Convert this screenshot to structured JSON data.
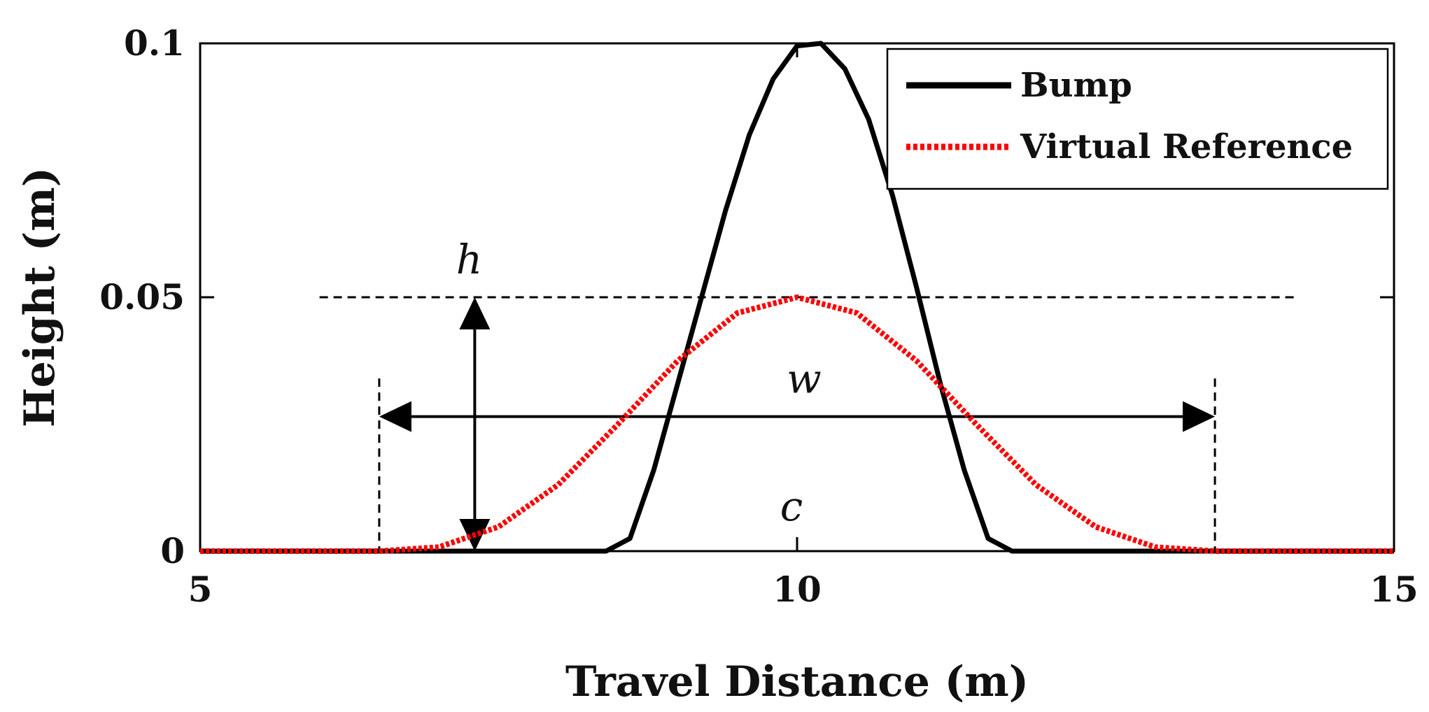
{
  "chart_data": {
    "type": "line",
    "xlabel": "Travel Distance (m)",
    "ylabel": "Height (m)",
    "xlim": [
      5,
      15
    ],
    "ylim": [
      0,
      0.1
    ],
    "x_ticks": [
      5,
      10,
      15
    ],
    "x_tick_labels": [
      "5",
      "10",
      "15"
    ],
    "y_ticks": [
      0,
      0.05,
      0.1
    ],
    "y_tick_labels": [
      "0",
      "0.05",
      "0.1"
    ],
    "grid": false,
    "legend_position": "top-right",
    "series": [
      {
        "name": "Bump",
        "color": "#000000",
        "style": "solid",
        "x": [
          5,
          6,
          7,
          8,
          8.4,
          8.6,
          8.8,
          9.0,
          9.2,
          9.4,
          9.6,
          9.8,
          10.0,
          10.2,
          10.4,
          10.6,
          10.8,
          11.0,
          11.2,
          11.4,
          11.6,
          11.8,
          12.0,
          12.5,
          13,
          14,
          15
        ],
        "y": [
          0,
          0,
          0,
          0,
          0,
          0.0025,
          0.016,
          0.033,
          0.05,
          0.067,
          0.082,
          0.093,
          0.0995,
          0.1,
          0.095,
          0.085,
          0.07,
          0.052,
          0.033,
          0.016,
          0.0025,
          0,
          0,
          0,
          0,
          0,
          0
        ]
      },
      {
        "name": "Virtual Reference",
        "color": "#ff0000",
        "style": "dotted",
        "x": [
          5,
          6,
          6.5,
          7,
          7.5,
          8,
          8.5,
          9,
          9.5,
          10,
          10.5,
          11,
          11.5,
          12,
          12.5,
          13,
          13.5,
          14,
          15
        ],
        "y": [
          0,
          0,
          0,
          0.0008,
          0.0048,
          0.0131,
          0.025,
          0.0375,
          0.0469,
          0.05,
          0.0469,
          0.0375,
          0.025,
          0.0131,
          0.0048,
          0.0008,
          0,
          0,
          0
        ]
      }
    ],
    "annotations": {
      "h_label": "h",
      "w_label": "w",
      "c_label": "c",
      "h_value": 0.05,
      "w_range": [
        6.5,
        13.5
      ],
      "w_y": 0.0265,
      "h_arrow_x": 7.3,
      "c_x": 10,
      "dashed_line_x": [
        6.0,
        14.2
      ]
    }
  }
}
